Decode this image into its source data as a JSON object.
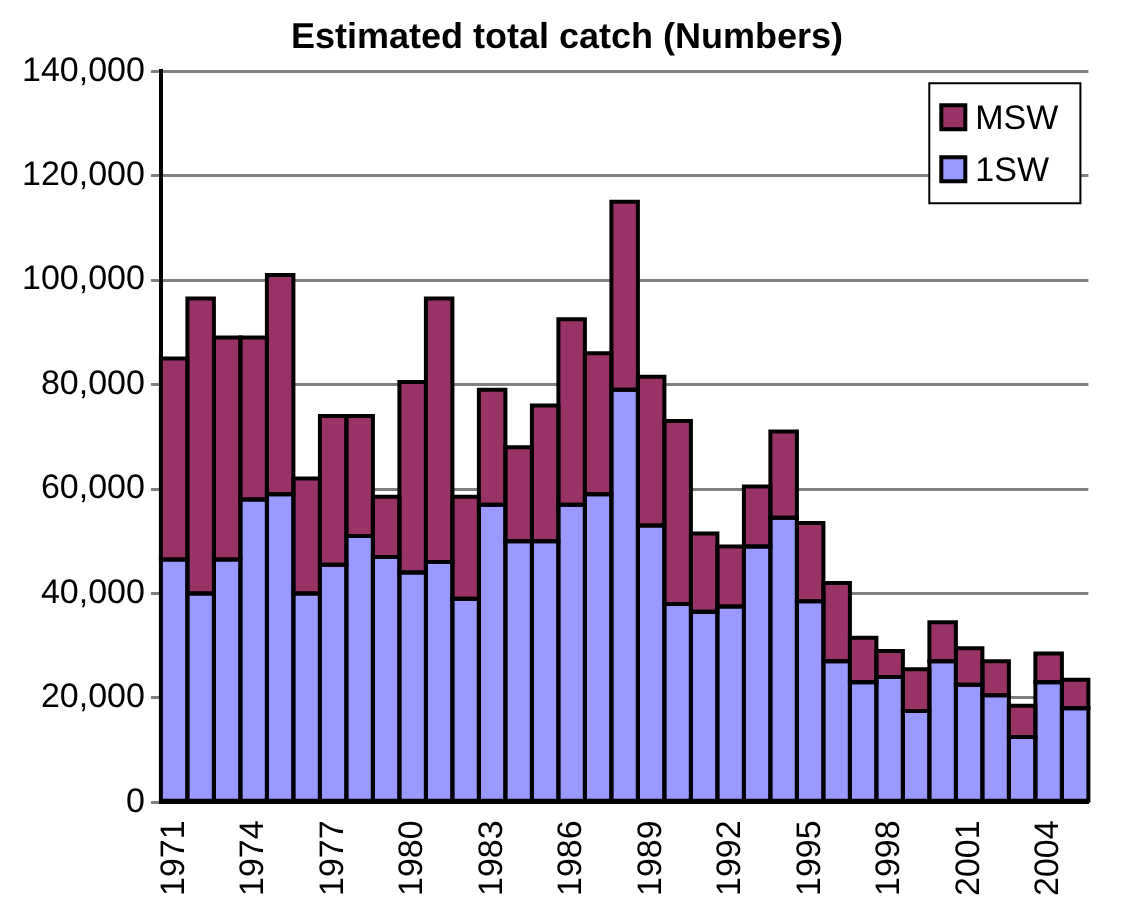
{
  "chart_data": {
    "type": "bar",
    "title": "Estimated total catch (Numbers)",
    "stacked": true,
    "categories": [
      "1971",
      null,
      null,
      "1974",
      null,
      null,
      "1977",
      null,
      null,
      "1980",
      null,
      null,
      "1983",
      null,
      null,
      "1986",
      null,
      null,
      "1989",
      null,
      null,
      "1992",
      null,
      null,
      "1995",
      null,
      null,
      "1998",
      null,
      null,
      "2001",
      null,
      null,
      "2004",
      null
    ],
    "series": [
      {
        "name": "1SW",
        "color": "#9999ff",
        "values": [
          46500,
          40000,
          46500,
          58000,
          59000,
          40000,
          45500,
          51000,
          47000,
          44000,
          46000,
          39000,
          57000,
          50000,
          50000,
          57000,
          59000,
          79000,
          53000,
          38000,
          36500,
          37500,
          49000,
          54500,
          38500,
          27000,
          23000,
          24000,
          17500,
          27000,
          22500,
          20500,
          12500,
          23000,
          18000
        ]
      },
      {
        "name": "MSW",
        "color": "#993366",
        "values": [
          38500,
          56500,
          42500,
          31000,
          42000,
          22000,
          28500,
          23000,
          11500,
          36500,
          50500,
          19500,
          22000,
          18000,
          26000,
          35500,
          27000,
          36000,
          28500,
          35000,
          15000,
          11500,
          11500,
          16500,
          15000,
          15000,
          8500,
          5000,
          8000,
          7500,
          7000,
          6500,
          6000,
          5500,
          5500
        ]
      }
    ],
    "ylim": [
      0,
      140000
    ],
    "yticks": [
      0,
      {
        "value": 20000,
        "label": "20,000"
      },
      {
        "value": 40000,
        "label": "40,000"
      },
      {
        "value": 60000,
        "label": "60,000"
      },
      {
        "value": 80000,
        "label": "80,000"
      },
      {
        "value": 100000,
        "label": "100,000"
      },
      {
        "value": 120000,
        "label": "120,000"
      },
      {
        "value": 140000,
        "label": "140,000"
      }
    ],
    "grid": "y",
    "legend": "top right"
  }
}
